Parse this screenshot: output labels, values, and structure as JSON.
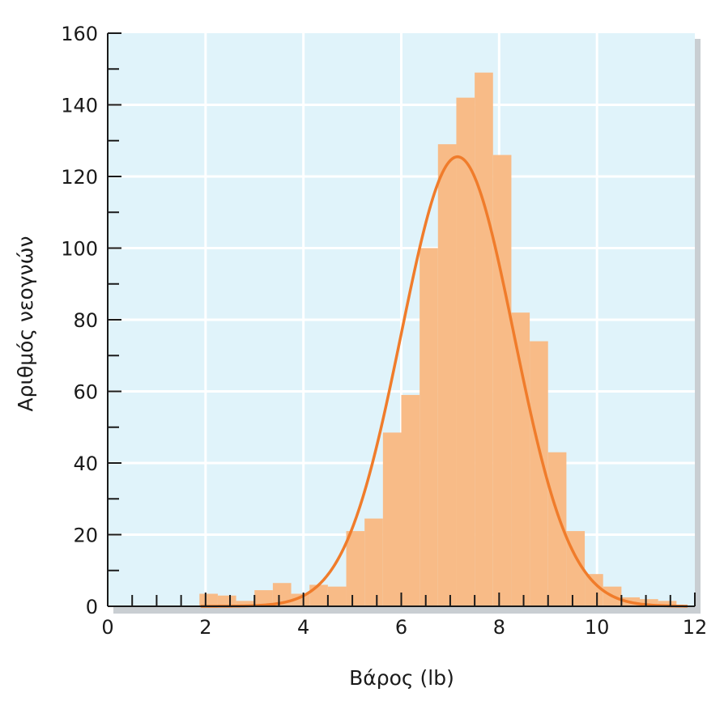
{
  "chart_data": {
    "type": "bar",
    "xlabel": "Βάρος (lb)",
    "ylabel": "Αριθμός νεογνών",
    "xlim": [
      0,
      12
    ],
    "ylim": [
      0,
      160
    ],
    "x_ticks": [
      "0",
      "2",
      "4",
      "6",
      "8",
      "10",
      "12"
    ],
    "y_ticks": [
      "0",
      "20",
      "40",
      "60",
      "80",
      "100",
      "120",
      "140",
      "160"
    ],
    "grid": true,
    "bin_width": 0.375,
    "bins": [
      {
        "x": 2.0625,
        "value": 3.5
      },
      {
        "x": 2.4375,
        "value": 3
      },
      {
        "x": 2.8125,
        "value": 1.5
      },
      {
        "x": 3.1875,
        "value": 4.5
      },
      {
        "x": 3.5625,
        "value": 6.5
      },
      {
        "x": 3.9375,
        "value": 3.5
      },
      {
        "x": 4.3125,
        "value": 6
      },
      {
        "x": 4.6875,
        "value": 5.5
      },
      {
        "x": 5.0625,
        "value": 21
      },
      {
        "x": 5.4375,
        "value": 24.5
      },
      {
        "x": 5.8125,
        "value": 48.5
      },
      {
        "x": 6.1875,
        "value": 59
      },
      {
        "x": 6.5625,
        "value": 100
      },
      {
        "x": 6.9375,
        "value": 129
      },
      {
        "x": 7.3125,
        "value": 142
      },
      {
        "x": 7.6875,
        "value": 149
      },
      {
        "x": 8.0625,
        "value": 126
      },
      {
        "x": 8.4375,
        "value": 82
      },
      {
        "x": 8.8125,
        "value": 74
      },
      {
        "x": 9.1875,
        "value": 43
      },
      {
        "x": 9.5625,
        "value": 21
      },
      {
        "x": 9.9375,
        "value": 9
      },
      {
        "x": 10.3125,
        "value": 5.5
      },
      {
        "x": 10.6875,
        "value": 2.5
      },
      {
        "x": 11.0625,
        "value": 2
      },
      {
        "x": 11.4375,
        "value": 1.5
      }
    ],
    "curve": {
      "type": "normal",
      "mean": 7.15,
      "sd": 1.15,
      "peak": 125.5
    },
    "colors": {
      "plot_bg": "#e0f3fa",
      "grid": "#ffffff",
      "bars": "#f8bb87",
      "curve": "#f07c2b",
      "axis": "#1a1a1a",
      "shadow": "#c9ced2"
    }
  }
}
